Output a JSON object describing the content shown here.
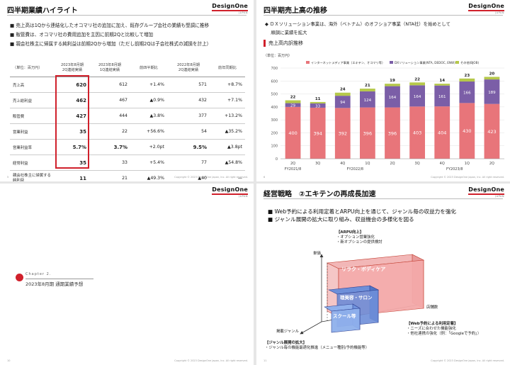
{
  "slides": {
    "s1": {
      "title": "四半期業績ハイライト",
      "bullets": [
        "■ 売上高は1Qから連結化したオコマリ社の追加に加え、既存グループ会社の業績も堅調に推移",
        "■ 販管費は、オコマリ社の費用追加を主因に前期2Qと比較して増加",
        "■ 親会社株主に帰属する純利益は前期2Qから増加（ただし前期2Qは子会社株式の減損を計上）"
      ],
      "table": {
        "headers": [
          "（単位：百万円）",
          "2023年8月期\n2Q連結実績",
          "2023年8月期\n1Q連結実績",
          "前四半期比",
          "2022年8月期\n2Q連結実績",
          "前年同期比"
        ],
        "rows": [
          [
            "売上高",
            "620",
            "612",
            "+1.4%",
            "571",
            "+8.7%"
          ],
          [
            "売上総利益",
            "462",
            "467",
            "▲0.9%",
            "432",
            "+7.1%"
          ],
          [
            "販管費",
            "427",
            "444",
            "▲3.8%",
            "377",
            "+13.2%"
          ],
          [
            "営業利益",
            "35",
            "22",
            "+56.6%",
            "54",
            "▲35.2%"
          ],
          [
            "営業利益率",
            "5.7%",
            "3.7%",
            "+2.0pt",
            "9.5%",
            "▲3.8pt"
          ],
          [
            "経常利益",
            "35",
            "33",
            "+5.4%",
            "77",
            "▲54.8%"
          ],
          [
            "親会社株主に帰属する純利益",
            "11",
            "21",
            "▲49.3%",
            "▲40",
            "—"
          ]
        ]
      },
      "page": "5",
      "copyright": "Copyright © 2023 DesignOne Japan, Inc. All right reserved."
    },
    "s2": {
      "title": "四半期売上高の推移",
      "bullets": [
        "◆ ＤＸソリューション事業は、海外（ベトナム）のオフショア事業（NTA社）を始めとして",
        "　 順調に業績を拡大"
      ],
      "subhead": "売上高内訳推移",
      "page": "6",
      "copyright": "Copyright © 2023 DesignOne Japan, Inc. All right reserved."
    },
    "s3": {
      "chapter_label": "Chapter 2.",
      "chapter_title": "2023年8月期 通期業績予想",
      "page": "10",
      "copyright": "Copyright © 2023 DesignOne Japan, Inc. All right reserved."
    },
    "s4": {
      "title": "経営戦略　②エキテンの再成長加速",
      "bullets": [
        "■ Web予約による利用定着とARPU向上を通じて、ジャンル毎の収益力を強化",
        "■ ジャンル展開の拡大に取り組み、収益機会の多様化を図る"
      ],
      "arpu_head": "【ARPU向上】",
      "arpu_items": [
        "・オプション営業強化",
        "・新オプションの提供検討"
      ],
      "web_head": "【Web予約による利用定着】",
      "web_items": [
        "・ニーズに合わせた機能強化",
        "・他社連携の強化（例：「Googleで予約」）"
      ],
      "genre_head": "【ジャンル展開の拡大】",
      "genre_items": [
        "・ジャンル毎の機能最適化推進（メニュー種別/予約機能等）"
      ],
      "axis_unit_price": "単価",
      "axis_stores": "店舗数",
      "axis_genre": "掲載ジャンル",
      "box_relax": "リラク・ボディケア",
      "box_beauty": "理美容・サロン",
      "box_school": "スクール等",
      "page": "11",
      "copyright": "Copyright © 2023 DesignOne Japan, Inc. All right reserved."
    }
  },
  "logo": {
    "name": "DesignOne",
    "sub": "JAPAN"
  },
  "colors": {
    "accent": "#d0202b",
    "internet": "#e8757a",
    "dx": "#7b5ea7",
    "other": "#b5c84a"
  },
  "chart_data": {
    "type": "bar",
    "stacked": true,
    "unit_label": "（単位：百万円）",
    "categories": [
      "2Q",
      "3Q",
      "4Q",
      "1Q",
      "2Q",
      "3Q",
      "4Q",
      "1Q",
      "2Q"
    ],
    "fiscal_groups": [
      {
        "label": "FY2021/8",
        "from": 0,
        "to": 0
      },
      {
        "label": "FY2022/8",
        "from": 1,
        "to": 4
      },
      {
        "label": "FY2023/8",
        "from": 5,
        "to": 8
      }
    ],
    "series": [
      {
        "name": "インターネットメディア事業（エキテン、オコマリ等）",
        "color": "#e8757a",
        "values": [
          400,
          394,
          392,
          396,
          396,
          403,
          404,
          430,
          423
        ]
      },
      {
        "name": "DXソリューション事業(NTA, DEDOC, ENW)",
        "color": "#7b5ea7",
        "values": [
          29,
          33,
          94,
          124,
          164,
          164,
          161,
          166,
          189
        ]
      },
      {
        "name": "その他(BJOB)",
        "color": "#b5c84a",
        "values": [
          22,
          11,
          24,
          21,
          19,
          22,
          14,
          23,
          20
        ]
      }
    ],
    "ylim": [
      0,
      700
    ],
    "yticks": [
      0,
      100,
      200,
      300,
      400,
      500,
      600,
      700
    ],
    "grid": true,
    "legend": "top"
  }
}
